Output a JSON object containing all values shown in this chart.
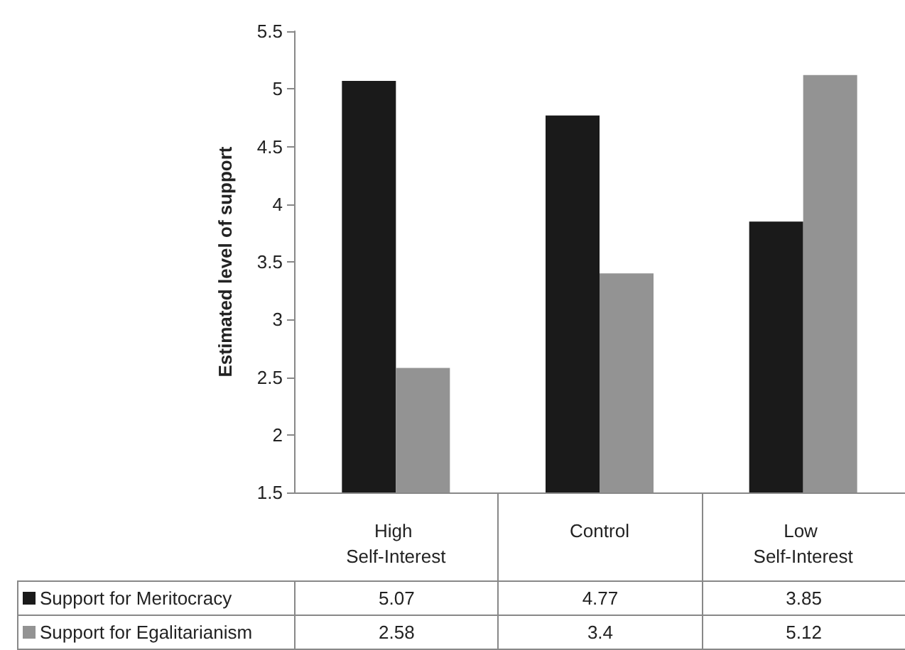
{
  "chart_data": {
    "type": "bar",
    "ylabel": "Estimated level of support",
    "categories": [
      "High Self-Interest",
      "Control",
      "Low Self-Interest"
    ],
    "series": [
      {
        "name": "Support for Meritocracy",
        "color": "#1a1a1a",
        "values": [
          5.07,
          4.77,
          3.85
        ]
      },
      {
        "name": "Support for Egalitarianism",
        "color": "#939393",
        "values": [
          2.58,
          3.4,
          5.12
        ]
      }
    ],
    "ylim": [
      1.5,
      5.5
    ],
    "yticks": [
      1.5,
      2,
      2.5,
      3,
      3.5,
      4,
      4.5,
      5,
      5.5
    ],
    "grid": false,
    "data_labels": true,
    "legend": "bottom"
  }
}
